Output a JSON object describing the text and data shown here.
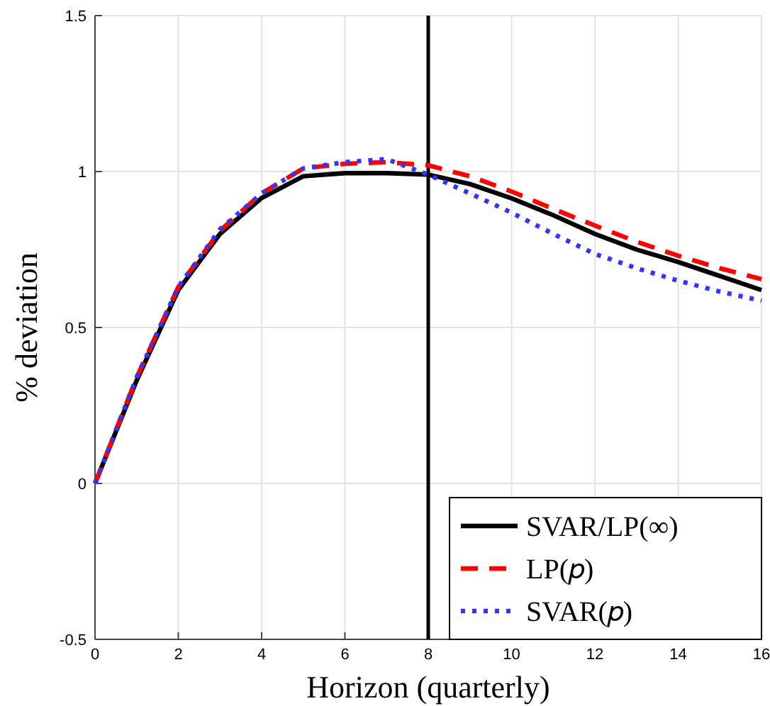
{
  "chart_data": {
    "type": "line",
    "xlabel": "Horizon (quarterly)",
    "ylabel": "% deviation",
    "x": [
      0,
      1,
      2,
      3,
      4,
      5,
      6,
      7,
      8,
      9,
      10,
      11,
      12,
      13,
      14,
      15,
      16
    ],
    "series": [
      {
        "name": "SVAR/LP(∞)",
        "color": "#000000",
        "line_style": "solid",
        "values": [
          0,
          0.33,
          0.62,
          0.8,
          0.915,
          0.985,
          0.995,
          0.995,
          0.99,
          0.96,
          0.914,
          0.86,
          0.8,
          0.75,
          0.71,
          0.665,
          0.62
        ]
      },
      {
        "name": "LP(𝑝)",
        "color": "#ff0000",
        "line_style": "dashed",
        "values": [
          0,
          0.34,
          0.63,
          0.81,
          0.93,
          1.01,
          1.025,
          1.03,
          1.02,
          0.985,
          0.936,
          0.88,
          0.827,
          0.775,
          0.73,
          0.69,
          0.655
        ]
      },
      {
        "name": "SVAR(𝑝)",
        "color": "#3333ff",
        "line_style": "dotted",
        "values": [
          0,
          0.34,
          0.63,
          0.815,
          0.93,
          1.01,
          1.03,
          1.04,
          0.99,
          0.93,
          0.868,
          0.8,
          0.736,
          0.69,
          0.65,
          0.615,
          0.586
        ]
      }
    ],
    "xlim": [
      0,
      16
    ],
    "xticks": [
      0,
      2,
      4,
      6,
      8,
      10,
      12,
      14,
      16
    ],
    "ylim": [
      -0.5,
      1.5
    ],
    "yticks": [
      -0.5,
      0,
      0.5,
      1,
      1.5
    ],
    "grid": true,
    "legend": "bottom right",
    "marker": "none",
    "ref_lines": [
      {
        "axis": "x",
        "value": 8,
        "color": "#000000",
        "line_style": "solid"
      }
    ]
  }
}
